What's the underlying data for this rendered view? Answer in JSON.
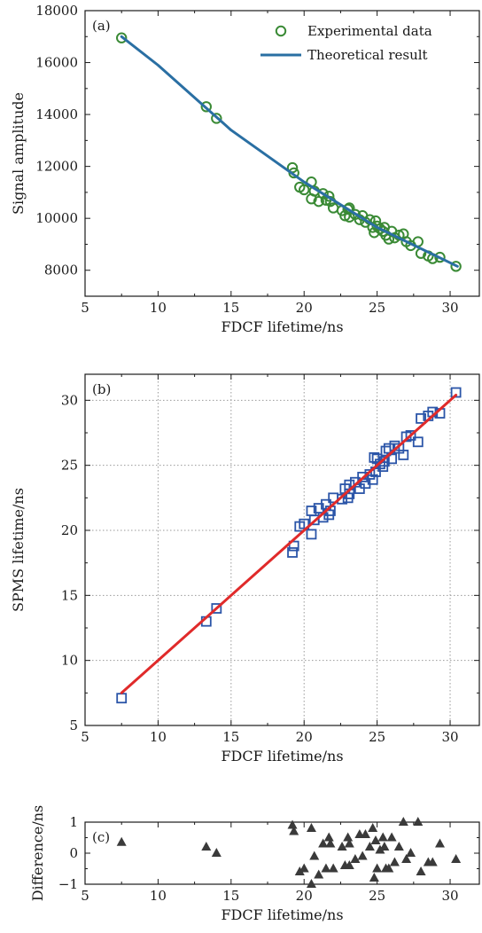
{
  "chart_data": [
    {
      "panel": "(a)",
      "type": "scatter",
      "xlabel": "FDCF lifetime/ns",
      "ylabel": "Signal amplitude",
      "xlim": [
        5,
        32
      ],
      "ylim": [
        7000,
        18000
      ],
      "xticks": [
        5,
        10,
        15,
        20,
        25,
        30
      ],
      "yticks": [
        8000,
        10000,
        12000,
        14000,
        16000,
        18000
      ],
      "legend": {
        "position": "top-right",
        "entries": [
          "Experimental data",
          "Theoretical result"
        ]
      },
      "colors": {
        "markers": "#3a8a35",
        "line": "#2a6fa3"
      },
      "series": [
        {
          "name": "Experimental data",
          "marker": "circle",
          "points": [
            [
              7.5,
              16950
            ],
            [
              13.3,
              14300
            ],
            [
              14.0,
              13850
            ],
            [
              19.2,
              11950
            ],
            [
              19.3,
              11750
            ],
            [
              19.7,
              11200
            ],
            [
              20.0,
              11100
            ],
            [
              20.5,
              11400
            ],
            [
              20.5,
              10750
            ],
            [
              20.7,
              11050
            ],
            [
              21.0,
              10650
            ],
            [
              21.3,
              10950
            ],
            [
              21.5,
              10700
            ],
            [
              21.7,
              10850
            ],
            [
              21.8,
              10650
            ],
            [
              22.0,
              10400
            ],
            [
              22.6,
              10300
            ],
            [
              22.8,
              10100
            ],
            [
              23.0,
              10350
            ],
            [
              23.1,
              10400
            ],
            [
              23.1,
              10050
            ],
            [
              23.5,
              10150
            ],
            [
              23.8,
              9950
            ],
            [
              24.0,
              10100
            ],
            [
              24.2,
              9850
            ],
            [
              24.5,
              9950
            ],
            [
              24.7,
              9650
            ],
            [
              24.8,
              9450
            ],
            [
              24.9,
              9900
            ],
            [
              25.0,
              9700
            ],
            [
              25.2,
              9600
            ],
            [
              25.4,
              9500
            ],
            [
              25.5,
              9650
            ],
            [
              25.6,
              9350
            ],
            [
              25.8,
              9200
            ],
            [
              26.0,
              9500
            ],
            [
              26.2,
              9250
            ],
            [
              26.5,
              9350
            ],
            [
              26.8,
              9400
            ],
            [
              27.0,
              9100
            ],
            [
              27.3,
              8950
            ],
            [
              27.8,
              9100
            ],
            [
              28.0,
              8650
            ],
            [
              28.5,
              8550
            ],
            [
              28.8,
              8450
            ],
            [
              29.3,
              8500
            ],
            [
              30.4,
              8150
            ]
          ]
        },
        {
          "name": "Theoretical result",
          "marker": "line",
          "points": [
            [
              7.5,
              17000
            ],
            [
              10,
              15900
            ],
            [
              15,
              13400
            ],
            [
              20,
              11400
            ],
            [
              25,
              9650
            ],
            [
              30.5,
              8150
            ]
          ]
        }
      ]
    },
    {
      "panel": "(b)",
      "type": "scatter",
      "xlabel": "FDCF lifetime/ns",
      "ylabel": "SPMS lifetime/ns",
      "xlim": [
        5,
        32
      ],
      "ylim": [
        5,
        32
      ],
      "xticks": [
        5,
        10,
        15,
        20,
        25,
        30
      ],
      "yticks": [
        5,
        10,
        15,
        20,
        25,
        30
      ],
      "grid": true,
      "colors": {
        "markers": "#2b55a8",
        "line": "#e02a2a"
      },
      "series": [
        {
          "marker": "square",
          "points": [
            [
              7.5,
              7.1
            ],
            [
              13.3,
              13.0
            ],
            [
              14.0,
              14.0
            ],
            [
              19.2,
              18.3
            ],
            [
              19.3,
              18.8
            ],
            [
              19.7,
              20.3
            ],
            [
              20.0,
              20.5
            ],
            [
              20.5,
              21.5
            ],
            [
              20.5,
              19.7
            ],
            [
              20.7,
              20.8
            ],
            [
              21.0,
              21.7
            ],
            [
              21.3,
              21.0
            ],
            [
              21.5,
              22.0
            ],
            [
              21.7,
              21.2
            ],
            [
              21.8,
              21.5
            ],
            [
              22.0,
              22.5
            ],
            [
              22.6,
              22.4
            ],
            [
              22.8,
              23.2
            ],
            [
              23.0,
              22.5
            ],
            [
              23.1,
              23.5
            ],
            [
              23.1,
              22.8
            ],
            [
              23.5,
              23.7
            ],
            [
              23.8,
              23.2
            ],
            [
              24.0,
              24.1
            ],
            [
              24.2,
              23.6
            ],
            [
              24.5,
              24.3
            ],
            [
              24.7,
              23.9
            ],
            [
              24.8,
              25.6
            ],
            [
              24.9,
              24.5
            ],
            [
              25.0,
              25.5
            ],
            [
              25.2,
              25.1
            ],
            [
              25.4,
              24.9
            ],
            [
              25.5,
              25.3
            ],
            [
              25.6,
              26.1
            ],
            [
              25.8,
              26.3
            ],
            [
              26.0,
              25.5
            ],
            [
              26.2,
              26.5
            ],
            [
              26.5,
              26.3
            ],
            [
              26.8,
              25.8
            ],
            [
              27.0,
              27.2
            ],
            [
              27.3,
              27.3
            ],
            [
              27.8,
              26.8
            ],
            [
              28.0,
              28.6
            ],
            [
              28.5,
              28.8
            ],
            [
              28.8,
              29.1
            ],
            [
              29.3,
              29.0
            ],
            [
              30.4,
              30.6
            ]
          ]
        },
        {
          "marker": "line",
          "points": [
            [
              7.5,
              7.5
            ],
            [
              30.4,
              30.4
            ]
          ]
        }
      ]
    },
    {
      "panel": "(c)",
      "type": "scatter",
      "xlabel": "FDCF lifetime/ns",
      "ylabel": "Difference/ns",
      "xlim": [
        5,
        32
      ],
      "ylim": [
        -1,
        1
      ],
      "xticks": [
        5,
        10,
        15,
        20,
        25,
        30
      ],
      "yticks": [
        -1,
        0,
        1
      ],
      "colors": {
        "markers": "#3a3a3a"
      },
      "series": [
        {
          "marker": "triangle",
          "points": [
            [
              7.5,
              0.35
            ],
            [
              13.3,
              0.2
            ],
            [
              14.0,
              0.0
            ],
            [
              19.2,
              0.9
            ],
            [
              19.3,
              0.7
            ],
            [
              19.7,
              -0.6
            ],
            [
              20.0,
              -0.5
            ],
            [
              20.5,
              -1.0
            ],
            [
              20.5,
              0.8
            ],
            [
              20.7,
              -0.1
            ],
            [
              21.0,
              -0.7
            ],
            [
              21.3,
              0.3
            ],
            [
              21.5,
              -0.5
            ],
            [
              21.7,
              0.5
            ],
            [
              21.8,
              0.3
            ],
            [
              22.0,
              -0.5
            ],
            [
              22.6,
              0.2
            ],
            [
              22.8,
              -0.4
            ],
            [
              23.0,
              0.5
            ],
            [
              23.1,
              -0.4
            ],
            [
              23.1,
              0.3
            ],
            [
              23.5,
              -0.2
            ],
            [
              23.8,
              0.6
            ],
            [
              24.0,
              -0.1
            ],
            [
              24.2,
              0.6
            ],
            [
              24.5,
              0.2
            ],
            [
              24.7,
              0.8
            ],
            [
              24.8,
              -0.8
            ],
            [
              24.9,
              0.4
            ],
            [
              25.0,
              -0.5
            ],
            [
              25.2,
              0.1
            ],
            [
              25.4,
              0.5
            ],
            [
              25.5,
              0.2
            ],
            [
              25.6,
              -0.5
            ],
            [
              25.8,
              -0.5
            ],
            [
              26.0,
              0.5
            ],
            [
              26.2,
              -0.3
            ],
            [
              26.5,
              0.2
            ],
            [
              26.8,
              1.0
            ],
            [
              27.0,
              -0.2
            ],
            [
              27.3,
              0.0
            ],
            [
              27.8,
              1.0
            ],
            [
              28.0,
              -0.6
            ],
            [
              28.5,
              -0.3
            ],
            [
              28.8,
              -0.3
            ],
            [
              29.3,
              0.3
            ],
            [
              30.4,
              -0.2
            ]
          ]
        }
      ]
    }
  ]
}
